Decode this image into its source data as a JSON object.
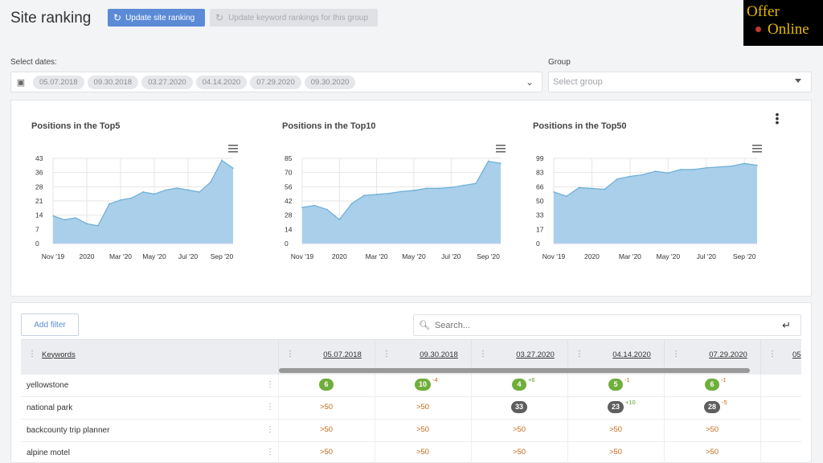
{
  "header": {
    "title": "Site ranking",
    "update_site_label": "Update site ranking",
    "update_keyword_label": "Update keyword rankings for this group"
  },
  "logo": {
    "line1": "Offer",
    "line2": "Online"
  },
  "filters": {
    "dates_label": "Select dates:",
    "dates": [
      "05.07.2018",
      "09.30.2018",
      "03.27.2020",
      "04.14.2020",
      "07.29.2020",
      "09.30.2020"
    ],
    "group_label": "Group",
    "group_placeholder": "Select group"
  },
  "charts": [
    {
      "title": "Positions in the Top5",
      "ytick_labels": [
        "43",
        "36",
        "28",
        "21",
        "14",
        "7",
        "0"
      ],
      "xtick_labels": [
        "Nov '19",
        "2020",
        "Mar '20",
        "May '20",
        "Jul '20",
        "Sep '20"
      ]
    },
    {
      "title": "Positions in the Top10",
      "ytick_labels": [
        "85",
        "70",
        "56",
        "42",
        "28",
        "14",
        "0"
      ],
      "xtick_labels": [
        "Nov '19",
        "2020",
        "Mar '20",
        "May '20",
        "Jul '20",
        "Sep '20"
      ]
    },
    {
      "title": "Positions in the Top50",
      "ytick_labels": [
        "99",
        "83",
        "66",
        "50",
        "33",
        "17",
        "0"
      ],
      "xtick_labels": [
        "Nov '19",
        "2020",
        "Mar '20",
        "May '20",
        "Jul '20",
        "Sep '20"
      ]
    }
  ],
  "chart_data": [
    {
      "type": "area",
      "title": "Positions in the Top5",
      "color": "#a9cfeb",
      "line_color": "#6aaed6",
      "ylim": [
        0,
        43
      ],
      "x": [
        "Nov '19",
        "",
        "",
        "2020",
        "",
        "",
        "Mar '20",
        "",
        "",
        "May '20",
        "",
        "",
        "Jul '20",
        "",
        "",
        "Sep '20",
        ""
      ],
      "values": [
        14,
        12,
        13,
        10,
        9,
        20,
        22,
        23,
        26,
        25,
        27,
        28,
        27,
        26,
        31,
        42,
        38
      ]
    },
    {
      "type": "area",
      "title": "Positions in the Top10",
      "color": "#a9cfeb",
      "line_color": "#6aaed6",
      "ylim": [
        0,
        85
      ],
      "x": [
        "Nov '19",
        "",
        "",
        "2020",
        "",
        "",
        "Mar '20",
        "",
        "",
        "May '20",
        "",
        "",
        "Jul '20",
        "",
        "",
        "Sep '20",
        ""
      ],
      "values": [
        36,
        38,
        34,
        24,
        40,
        48,
        49,
        50,
        52,
        53,
        55,
        55,
        56,
        58,
        60,
        82,
        80
      ]
    },
    {
      "type": "area",
      "title": "Positions in the Top50",
      "color": "#a9cfeb",
      "line_color": "#6aaed6",
      "ylim": [
        0,
        99
      ],
      "x": [
        "Nov '19",
        "",
        "",
        "2020",
        "",
        "",
        "Mar '20",
        "",
        "",
        "May '20",
        "",
        "",
        "Jul '20",
        "",
        "",
        "Sep '20",
        ""
      ],
      "values": [
        60,
        55,
        65,
        64,
        63,
        75,
        78,
        80,
        84,
        82,
        86,
        86,
        88,
        89,
        90,
        93,
        91
      ]
    }
  ],
  "table": {
    "add_filter_label": "Add filter",
    "search_placeholder": "Search...",
    "keywords_header": "Keywords",
    "date_headers": [
      "05.07.2018",
      "09.30.2018",
      "03.27.2020",
      "04.14.2020",
      "07.29.2020",
      "05"
    ],
    "rows": [
      {
        "keyword": "yellowstone",
        "cells": [
          {
            "value": "6",
            "style": "green",
            "delta": ""
          },
          {
            "value": "10",
            "style": "green",
            "delta": "-4"
          },
          {
            "value": "4",
            "style": "green",
            "delta": "+6"
          },
          {
            "value": "5",
            "style": "green",
            "delta": "-1"
          },
          {
            "value": "6",
            "style": "green",
            "delta": "-1"
          }
        ]
      },
      {
        "keyword": "national park",
        "cells": [
          {
            "value": ">50",
            "style": "plain",
            "delta": ""
          },
          {
            "value": ">50",
            "style": "plain",
            "delta": ""
          },
          {
            "value": "33",
            "style": "gray",
            "delta": ""
          },
          {
            "value": "23",
            "style": "gray",
            "delta": "+10"
          },
          {
            "value": "28",
            "style": "gray",
            "delta": "-5"
          }
        ]
      },
      {
        "keyword": "backcounty trip planner",
        "cells": [
          {
            "value": ">50",
            "style": "plain",
            "delta": ""
          },
          {
            "value": ">50",
            "style": "plain",
            "delta": ""
          },
          {
            "value": ">50",
            "style": "plain",
            "delta": ""
          },
          {
            "value": ">50",
            "style": "plain",
            "delta": ""
          },
          {
            "value": ">50",
            "style": "plain",
            "delta": ""
          }
        ]
      },
      {
        "keyword": "alpine motel",
        "cells": [
          {
            "value": ">50",
            "style": "plain",
            "delta": ""
          },
          {
            "value": ">50",
            "style": "plain",
            "delta": ""
          },
          {
            "value": ">50",
            "style": "plain",
            "delta": ""
          },
          {
            "value": ">50",
            "style": "plain",
            "delta": ""
          },
          {
            "value": ">50",
            "style": "plain",
            "delta": ""
          }
        ]
      }
    ]
  },
  "colors": {
    "accent": "#5b8bd6",
    "badge_green": "#6fae3b",
    "badge_gray": "#5e5e5e",
    "delta_up": "#5d9e2b",
    "delta_down": "#c26a1a"
  }
}
